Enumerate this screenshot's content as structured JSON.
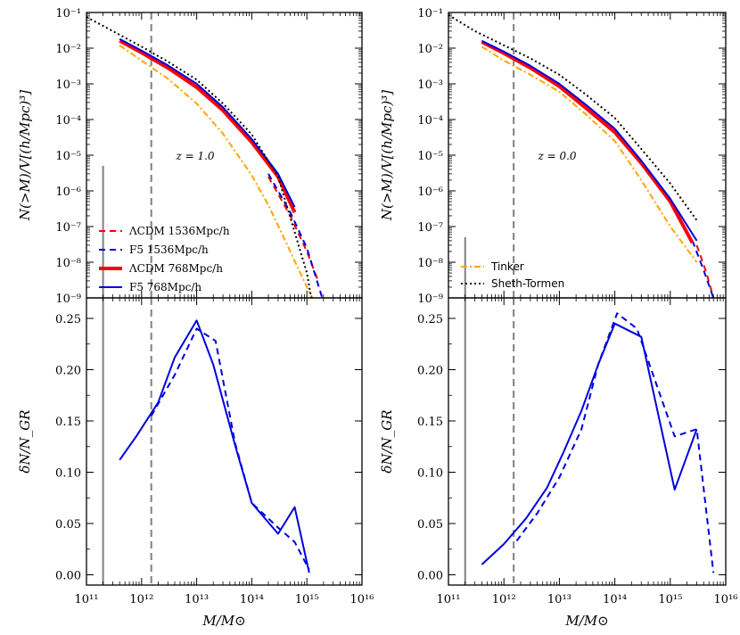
{
  "colors": {
    "lcdm": "#ff0000",
    "f5": "#0000dd",
    "tinker": "#ffa500",
    "sheth_tormen": "#000000",
    "vline": "#808080"
  },
  "chart_data": [
    {
      "id": "top-left",
      "type": "line",
      "xscale": "log",
      "yscale": "log",
      "xlim": [
        100000000000.0,
        1e+16
      ],
      "ylim": [
        1e-09,
        0.1
      ],
      "xlabel": "",
      "ylabel": "N(>M)/V[(h/Mpc)³]",
      "y_ticks": [
        "10⁻⁹",
        "10⁻⁸",
        "10⁻⁷",
        "10⁻⁶",
        "10⁻⁵",
        "10⁻⁴",
        "10⁻³",
        "10⁻²",
        "10⁻¹"
      ],
      "annotation": "z = 1.0",
      "legend_location": "lower left",
      "vlines": [
        {
          "x": 200000000000.0,
          "style": "solid",
          "ymax": 5e-06
        },
        {
          "x": 1500000000000.0,
          "style": "dashed"
        }
      ],
      "series": [
        {
          "name": "ΛCDM 1536Mpc/h",
          "style": "red-dashed",
          "x": [
            200000000000000.0,
            500000000000000.0,
            1000000000000000.0,
            1600000000000000.0
          ],
          "y": [
            2.5e-06,
            2e-07,
            2e-08,
            3e-09
          ]
        },
        {
          "name": "F5 1536Mpc/h",
          "style": "blue-dashed",
          "x": [
            200000000000000.0,
            500000000000000.0,
            1000000000000000.0,
            1900000000000000.0
          ],
          "y": [
            3e-06,
            2.5e-07,
            2.5e-08,
            1e-09
          ]
        },
        {
          "name": "ΛCDM 768Mpc/h",
          "style": "red-solid",
          "x": [
            400000000000.0,
            1000000000000.0,
            3000000000000.0,
            10000000000000.0,
            30000000000000.0,
            100000000000000.0,
            300000000000000.0,
            600000000000000.0
          ],
          "y": [
            0.016,
            0.0075,
            0.0028,
            0.0008,
            0.00018,
            2.3e-05,
            2.5e-06,
            2.5e-07
          ]
        },
        {
          "name": "F5 768Mpc/h",
          "style": "blue-solid",
          "x": [
            400000000000.0,
            1000000000000.0,
            3000000000000.0,
            10000000000000.0,
            30000000000000.0,
            100000000000000.0,
            300000000000000.0,
            600000000000000.0
          ],
          "y": [
            0.018,
            0.0085,
            0.0033,
            0.001,
            0.00022,
            2.8e-05,
            3e-06,
            3.5e-07
          ]
        },
        {
          "name": "",
          "style": "tinker-dashdot",
          "x": [
            400000000000.0,
            1000000000000.0,
            3000000000000.0,
            10000000000000.0,
            30000000000000.0,
            100000000000000.0,
            200000000000000.0,
            500000000000000.0,
            1000000000000000.0,
            1500000000000000.0
          ],
          "y": [
            0.012,
            0.0045,
            0.0014,
            0.00028,
            4e-05,
            2.7e-06,
            4e-07,
            2e-08,
            2e-09,
            6e-10
          ]
        },
        {
          "name": "",
          "style": "st-dotted",
          "x": [
            100000000000.0,
            300000000000.0,
            1000000000000.0,
            3000000000000.0,
            10000000000000.0,
            30000000000000.0,
            100000000000000.0,
            300000000000000.0,
            1000000000000000.0,
            1200000000000000.0
          ],
          "y": [
            0.075,
            0.03,
            0.011,
            0.0042,
            0.0013,
            0.00028,
            3.8e-05,
            2.5e-06,
            5e-09,
            1e-09
          ]
        }
      ]
    },
    {
      "id": "top-right",
      "type": "line",
      "xscale": "log",
      "yscale": "log",
      "xlim": [
        100000000000.0,
        1e+16
      ],
      "ylim": [
        1e-09,
        0.1
      ],
      "xlabel": "",
      "ylabel": "N(>M)/V[(h/Mpc)³]",
      "y_ticks": [
        "10⁻⁹",
        "10⁻⁸",
        "10⁻⁷",
        "10⁻⁶",
        "10⁻⁵",
        "10⁻⁴",
        "10⁻³",
        "10⁻²",
        "10⁻¹"
      ],
      "annotation": "z = 0.0",
      "legend_location": "lower left",
      "vlines": [
        {
          "x": 200000000000.0,
          "style": "solid",
          "ymax": 5e-08
        },
        {
          "x": 1500000000000.0,
          "style": "dashed"
        }
      ],
      "series": [
        {
          "name": "Tinker",
          "style": "tinker-dashdot",
          "x": [
            400000000000.0,
            1000000000000.0,
            3000000000000.0,
            10000000000000.0,
            30000000000000.0,
            100000000000000.0,
            300000000000000.0,
            1000000000000000.0,
            3000000000000000.0
          ],
          "y": [
            0.011,
            0.0045,
            0.0018,
            0.0006,
            0.00014,
            2.5e-05,
            2e-06,
            1e-07,
            1e-08
          ]
        },
        {
          "name": "Sheth-Tormen",
          "style": "st-dotted",
          "x": [
            100000000000.0,
            300000000000.0,
            1000000000000.0,
            3000000000000.0,
            10000000000000.0,
            30000000000000.0,
            100000000000000.0,
            300000000000000.0,
            1000000000000000.0,
            3000000000000000.0
          ],
          "y": [
            0.085,
            0.03,
            0.012,
            0.0052,
            0.0018,
            0.0005,
            0.00011,
            1.5e-05,
            1.6e-06,
            1.5e-07
          ]
        },
        {
          "name": "",
          "style": "red-dashed",
          "x": [
            3000000000000000.0,
            4500000000000000.0,
            6000000000000000.0
          ],
          "y": [
            3e-08,
            5e-09,
            1e-09
          ]
        },
        {
          "name": "",
          "style": "blue-dashed",
          "x": [
            2500000000000000.0,
            4000000000000000.0,
            6000000000000000.0
          ],
          "y": [
            4e-08,
            6e-09,
            1e-09
          ]
        },
        {
          "name": "",
          "style": "red-solid",
          "x": [
            400000000000.0,
            1000000000000.0,
            3000000000000.0,
            10000000000000.0,
            30000000000000.0,
            100000000000000.0,
            300000000000000.0,
            1000000000000000.0,
            2500000000000000.0
          ],
          "y": [
            0.015,
            0.0072,
            0.0028,
            0.00085,
            0.00021,
            4.4e-05,
            6e-06,
            5e-07,
            3.5e-08
          ]
        },
        {
          "name": "",
          "style": "blue-solid",
          "x": [
            400000000000.0,
            1000000000000.0,
            3000000000000.0,
            10000000000000.0,
            30000000000000.0,
            100000000000000.0,
            300000000000000.0,
            1000000000000000.0,
            3000000000000000.0
          ],
          "y": [
            0.016,
            0.008,
            0.0032,
            0.001,
            0.00026,
            5.5e-05,
            7e-06,
            6e-07,
            4e-08
          ]
        }
      ]
    },
    {
      "id": "bottom-left",
      "type": "line",
      "xscale": "log",
      "yscale": "linear",
      "xlim": [
        100000000000.0,
        1e+16
      ],
      "ylim": [
        -0.01,
        0.27
      ],
      "xlabel": "M/M⊙",
      "ylabel": "δN/N_GR",
      "x_ticks": [
        "10¹¹",
        "10¹²",
        "10¹³",
        "10¹⁴",
        "10¹⁵",
        "10¹⁶"
      ],
      "y_ticks": [
        "0.00",
        "0.05",
        "0.10",
        "0.15",
        "0.20",
        "0.25"
      ],
      "vlines": [
        {
          "x": 200000000000.0,
          "style": "solid"
        },
        {
          "x": 1500000000000.0,
          "style": "dashed"
        }
      ],
      "series": [
        {
          "name": "",
          "style": "blue-solid",
          "x": [
            400000000000.0,
            800000000000.0,
            2000000000000.0,
            4000000000000.0,
            10000000000000.0,
            20000000000000.0,
            50000000000000.0,
            100000000000000.0,
            300000000000000.0,
            600000000000000.0,
            1100000000000000.0
          ],
          "y": [
            0.112,
            0.135,
            0.168,
            0.212,
            0.248,
            0.205,
            0.126,
            0.07,
            0.04,
            0.066,
            0.002
          ]
        },
        {
          "name": "",
          "style": "blue-dashed",
          "x": [
            1500000000000.0,
            4000000000000.0,
            10000000000000.0,
            22000000000000.0,
            50000000000000.0,
            100000000000000.0,
            300000000000000.0,
            600000000000000.0,
            1100000000000000.0
          ],
          "y": [
            0.155,
            0.195,
            0.24,
            0.228,
            0.128,
            0.07,
            0.046,
            0.032,
            0.005
          ]
        }
      ]
    },
    {
      "id": "bottom-right",
      "type": "line",
      "xscale": "log",
      "yscale": "linear",
      "xlim": [
        100000000000.0,
        1e+16
      ],
      "ylim": [
        -0.01,
        0.27
      ],
      "xlabel": "M/M⊙",
      "ylabel": "δN/N_GR",
      "x_ticks": [
        "10¹¹",
        "10¹²",
        "10¹³",
        "10¹⁴",
        "10¹⁵",
        "10¹⁶"
      ],
      "y_ticks": [
        "0.00",
        "0.05",
        "0.10",
        "0.15",
        "0.20",
        "0.25"
      ],
      "vlines": [
        {
          "x": 200000000000.0,
          "style": "solid"
        },
        {
          "x": 1500000000000.0,
          "style": "dashed"
        }
      ],
      "series": [
        {
          "name": "",
          "style": "blue-solid",
          "x": [
            400000000000.0,
            1000000000000.0,
            2500000000000.0,
            6000000000000.0,
            12000000000000.0,
            25000000000000.0,
            50000000000000.0,
            100000000000000.0,
            300000000000000.0,
            1200000000000000.0,
            3000000000000000.0
          ],
          "y": [
            0.01,
            0.03,
            0.055,
            0.085,
            0.12,
            0.16,
            0.205,
            0.245,
            0.232,
            0.083,
            0.142
          ]
        },
        {
          "name": "",
          "style": "blue-dashed",
          "x": [
            1700000000000.0,
            4000000000000.0,
            10000000000000.0,
            25000000000000.0,
            50000000000000.0,
            110000000000000.0,
            250000000000000.0,
            1200000000000000.0,
            3000000000000000.0,
            6000000000000000.0
          ],
          "y": [
            0.033,
            0.06,
            0.095,
            0.142,
            0.205,
            0.255,
            0.24,
            0.135,
            0.142,
            0.002
          ]
        }
      ]
    }
  ]
}
